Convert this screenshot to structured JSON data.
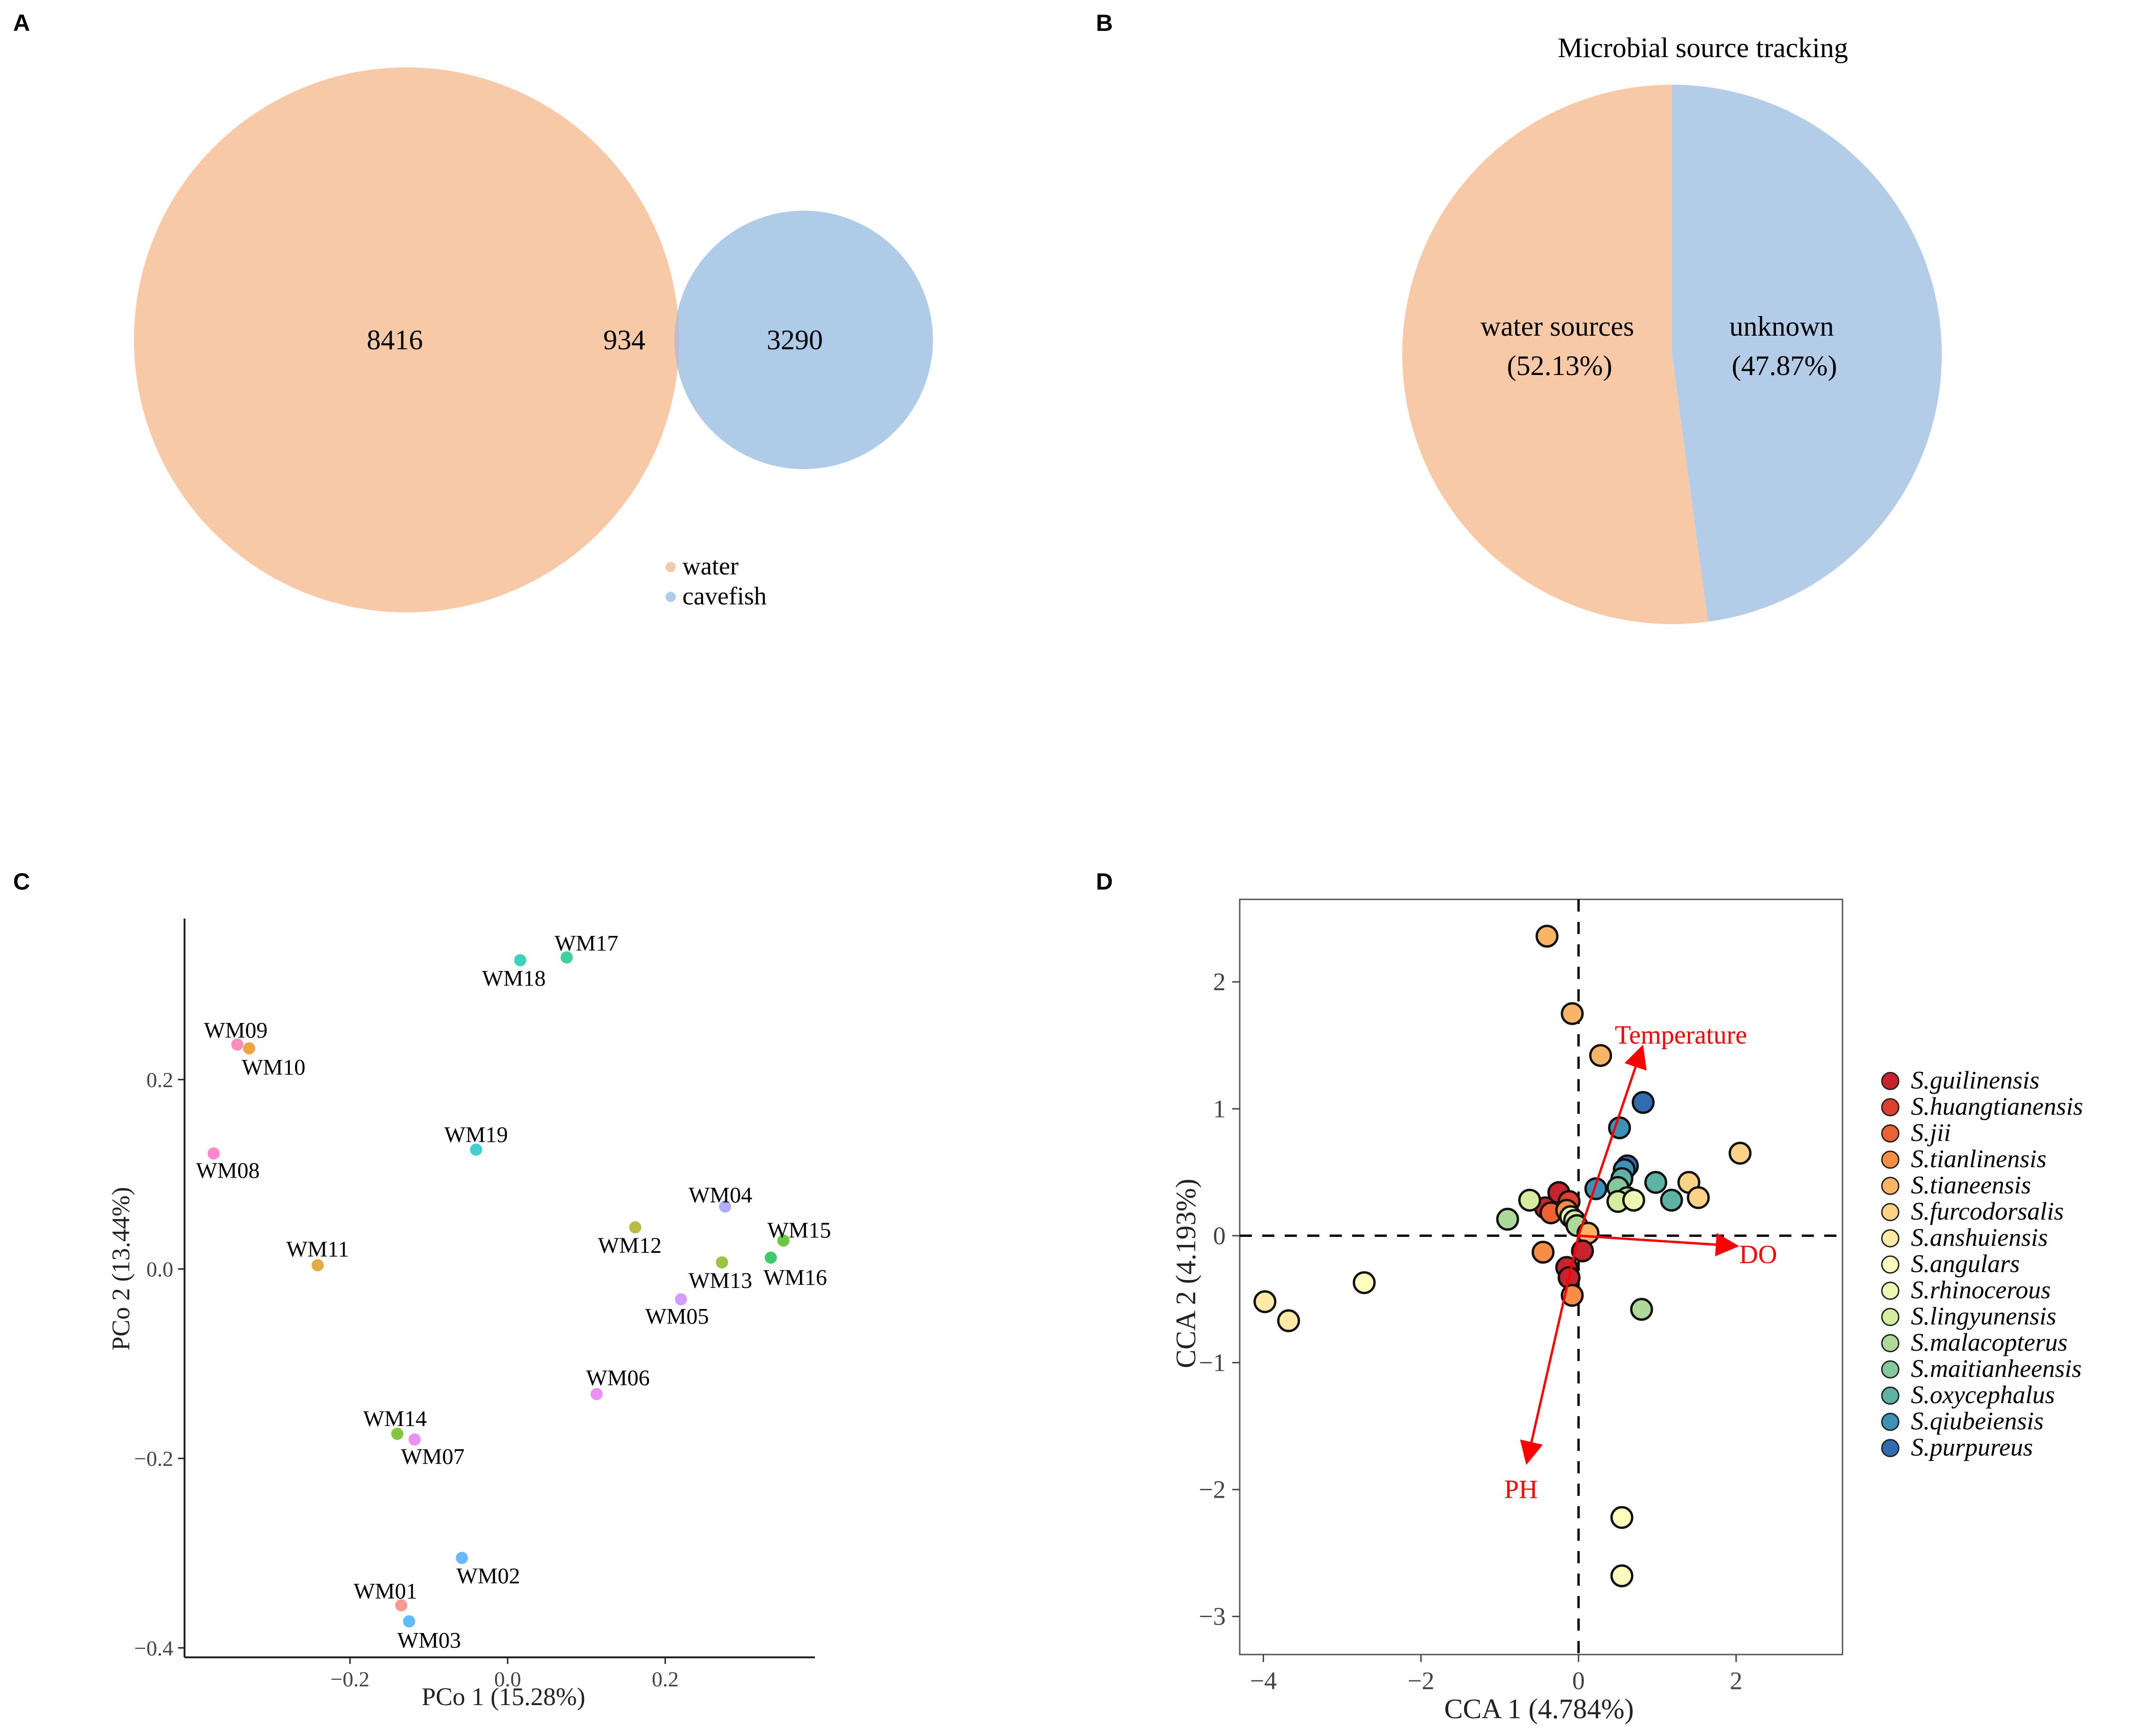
{
  "panels": {
    "a": "A",
    "b": "B",
    "c": "C",
    "d": "D"
  },
  "chart_data": [
    {
      "type": "venn",
      "panel": "A",
      "sets": [
        {
          "name": "water",
          "color": "#f8c9a6"
        },
        {
          "name": "cavefish",
          "color": "#aecbe8"
        }
      ],
      "values": {
        "water_only": "8416",
        "both": "934",
        "cavefish_only": "3290"
      },
      "overlap_color": "#c0bccd",
      "legend": [
        "water",
        "cavefish"
      ]
    },
    {
      "type": "pie",
      "panel": "B",
      "title": "Microbial source tracking",
      "slices": [
        {
          "label": "water sources",
          "pct_label": "(52.13%)",
          "value": 52.13,
          "color": "#f8c9a6"
        },
        {
          "label": "unknown",
          "pct_label": "(47.87%)",
          "value": 47.87,
          "color": "#b3cde8"
        }
      ]
    },
    {
      "type": "scatter",
      "panel": "C",
      "xlabel": "PCo 1 (15.28%)",
      "ylabel": "PCo 2 (13.44%)",
      "xlim": [
        -0.41,
        0.39
      ],
      "ylim": [
        -0.41,
        0.37
      ],
      "xticks": [
        -0.2,
        0.0,
        0.2
      ],
      "xtick_labels": [
        "−0.2",
        "0.0",
        "0.2"
      ],
      "yticks": [
        -0.4,
        -0.2,
        0.0,
        0.2
      ],
      "ytick_labels": [
        "−0.4",
        "−0.2",
        "0.0",
        "0.2"
      ],
      "points": [
        {
          "label": "WM01",
          "x": -0.135,
          "y": -0.355,
          "color": "#f8766d",
          "lx": -0.155,
          "ly": -0.34,
          "anchor": "middle"
        },
        {
          "label": "WM02",
          "x": -0.058,
          "y": -0.305,
          "color": "#35a2ff",
          "lx": -0.065,
          "ly": -0.324,
          "anchor": "start"
        },
        {
          "label": "WM03",
          "x": -0.125,
          "y": -0.372,
          "color": "#29a3ff",
          "lx": -0.14,
          "ly": -0.392,
          "anchor": "start"
        },
        {
          "label": "WM04",
          "x": 0.276,
          "y": 0.066,
          "color": "#9590ff",
          "lx": 0.27,
          "ly": 0.078,
          "anchor": "middle"
        },
        {
          "label": "WM05",
          "x": 0.22,
          "y": -0.032,
          "color": "#c77cff",
          "lx": 0.215,
          "ly": -0.05,
          "anchor": "middle"
        },
        {
          "label": "WM06",
          "x": 0.113,
          "y": -0.132,
          "color": "#e76bf3",
          "lx": 0.14,
          "ly": -0.115,
          "anchor": "middle"
        },
        {
          "label": "WM07",
          "x": -0.118,
          "y": -0.18,
          "color": "#e76bf3",
          "lx": -0.095,
          "ly": -0.198,
          "anchor": "middle"
        },
        {
          "label": "WM08",
          "x": -0.373,
          "y": 0.122,
          "color": "#ff62bc",
          "lx": -0.355,
          "ly": 0.104,
          "anchor": "middle"
        },
        {
          "label": "WM09",
          "x": -0.343,
          "y": 0.237,
          "color": "#ff67a4",
          "lx": -0.345,
          "ly": 0.252,
          "anchor": "middle"
        },
        {
          "label": "WM10",
          "x": -0.328,
          "y": 0.233,
          "color": "#e58700",
          "lx": -0.297,
          "ly": 0.213,
          "anchor": "middle"
        },
        {
          "label": "WM11",
          "x": -0.241,
          "y": 0.004,
          "color": "#d89000",
          "lx": -0.241,
          "ly": 0.021,
          "anchor": "middle"
        },
        {
          "label": "WM12",
          "x": 0.162,
          "y": 0.044,
          "color": "#a3a500",
          "lx": 0.155,
          "ly": 0.025,
          "anchor": "middle"
        },
        {
          "label": "WM13",
          "x": 0.272,
          "y": 0.007,
          "color": "#7cae00",
          "lx": 0.27,
          "ly": -0.012,
          "anchor": "middle"
        },
        {
          "label": "WM14",
          "x": -0.14,
          "y": -0.174,
          "color": "#5bb300",
          "lx": -0.143,
          "ly": -0.158,
          "anchor": "middle"
        },
        {
          "label": "WM15",
          "x": 0.35,
          "y": 0.03,
          "color": "#39b600",
          "lx": 0.37,
          "ly": 0.041,
          "anchor": "middle"
        },
        {
          "label": "WM16",
          "x": 0.334,
          "y": 0.012,
          "color": "#00ba38",
          "lx": 0.365,
          "ly": -0.009,
          "anchor": "middle"
        },
        {
          "label": "WM17",
          "x": 0.075,
          "y": 0.329,
          "color": "#00bf7d",
          "lx": 0.1,
          "ly": 0.344,
          "anchor": "middle"
        },
        {
          "label": "WM18",
          "x": 0.016,
          "y": 0.326,
          "color": "#00c1a3",
          "lx": 0.008,
          "ly": 0.307,
          "anchor": "middle"
        },
        {
          "label": "WM19",
          "x": -0.04,
          "y": 0.126,
          "color": "#00bfc4",
          "lx": -0.04,
          "ly": 0.142,
          "anchor": "middle"
        }
      ]
    },
    {
      "type": "scatter",
      "panel": "D",
      "xlabel": "CCA 1 (4.784%)",
      "ylabel": "CCA 2 (4.193%)",
      "xlim": [
        -4.3,
        3.35
      ],
      "ylim": [
        -3.3,
        2.65
      ],
      "xticks": [
        -4,
        -2,
        0,
        2
      ],
      "xtick_labels": [
        "−4",
        "−2",
        "0",
        "2"
      ],
      "yticks": [
        -3,
        -2,
        -1,
        0,
        1,
        2
      ],
      "ytick_labels": [
        "−3",
        "−2",
        "−1",
        "0",
        "1",
        "2"
      ],
      "arrows": [
        {
          "label": "Temperature",
          "x": 0.8,
          "y": 1.47,
          "lx": 1.3,
          "ly": 1.58
        },
        {
          "label": "DO",
          "x": 1.98,
          "y": -0.08,
          "lx": 2.28,
          "ly": -0.15
        },
        {
          "label": "PH",
          "x": -0.65,
          "y": -1.77,
          "lx": -0.73,
          "ly": -2.0
        }
      ],
      "species": [
        {
          "name": "S.guilinensis",
          "color": "#c8232c"
        },
        {
          "name": "S.huangtianensis",
          "color": "#de3f2e"
        },
        {
          "name": "S.jii",
          "color": "#ee6133"
        },
        {
          "name": "S.tianlinensis",
          "color": "#f68d45"
        },
        {
          "name": "S.tianeensis",
          "color": "#f9b565"
        },
        {
          "name": "S.furcodorsalis",
          "color": "#fbd386"
        },
        {
          "name": "S.anshuiensis",
          "color": "#fdeba5"
        },
        {
          "name": "S.angulars",
          "color": "#fffcbe"
        },
        {
          "name": "S.rhinocerous",
          "color": "#eef8b4"
        },
        {
          "name": "S.lingyunensis",
          "color": "#d4ed9e"
        },
        {
          "name": "S.malacopterus",
          "color": "#add99b"
        },
        {
          "name": "S.maitianheensis",
          "color": "#84c89e"
        },
        {
          "name": "S.oxycephalus",
          "color": "#5db4a4"
        },
        {
          "name": "S.qiubeiensis",
          "color": "#3b91b6"
        },
        {
          "name": "S.purpureus",
          "color": "#2f6cb2"
        }
      ],
      "points": [
        {
          "x": -0.4,
          "y": 2.36,
          "s": 4
        },
        {
          "x": -0.08,
          "y": 1.75,
          "s": 4
        },
        {
          "x": 0.28,
          "y": 1.42,
          "s": 4
        },
        {
          "x": 0.82,
          "y": 1.05,
          "s": 14
        },
        {
          "x": 0.52,
          "y": 0.85,
          "s": 13
        },
        {
          "x": 0.62,
          "y": 0.55,
          "s": 14
        },
        {
          "x": 0.58,
          "y": 0.52,
          "s": 13
        },
        {
          "x": 0.55,
          "y": 0.45,
          "s": 12
        },
        {
          "x": 0.98,
          "y": 0.42,
          "s": 12
        },
        {
          "x": 1.18,
          "y": 0.28,
          "s": 12
        },
        {
          "x": 0.5,
          "y": 0.38,
          "s": 11
        },
        {
          "x": 0.62,
          "y": 0.3,
          "s": 10
        },
        {
          "x": 0.5,
          "y": 0.27,
          "s": 9
        },
        {
          "x": 0.7,
          "y": 0.28,
          "s": 8
        },
        {
          "x": 1.4,
          "y": 0.42,
          "s": 5
        },
        {
          "x": 1.52,
          "y": 0.3,
          "s": 5
        },
        {
          "x": 2.05,
          "y": 0.65,
          "s": 5
        },
        {
          "x": 0.22,
          "y": 0.37,
          "s": 13
        },
        {
          "x": -0.42,
          "y": 0.22,
          "s": 0
        },
        {
          "x": -0.25,
          "y": 0.34,
          "s": 0
        },
        {
          "x": -0.12,
          "y": 0.27,
          "s": 1
        },
        {
          "x": -0.35,
          "y": 0.18,
          "s": 2
        },
        {
          "x": -0.15,
          "y": 0.2,
          "s": 3
        },
        {
          "x": -0.1,
          "y": 0.15,
          "s": 8
        },
        {
          "x": -0.05,
          "y": 0.12,
          "s": 9
        },
        {
          "x": -0.02,
          "y": 0.08,
          "s": 10
        },
        {
          "x": 0.12,
          "y": 0.02,
          "s": 4
        },
        {
          "x": 0.05,
          "y": -0.12,
          "s": 0
        },
        {
          "x": -0.62,
          "y": 0.28,
          "s": 9
        },
        {
          "x": -0.9,
          "y": 0.13,
          "s": 10
        },
        {
          "x": -0.45,
          "y": -0.13,
          "s": 3
        },
        {
          "x": -0.15,
          "y": -0.25,
          "s": 0
        },
        {
          "x": -0.12,
          "y": -0.33,
          "s": 0
        },
        {
          "x": -0.08,
          "y": -0.47,
          "s": 3
        },
        {
          "x": 0.8,
          "y": -0.58,
          "s": 10
        },
        {
          "x": -2.72,
          "y": -0.37,
          "s": 7
        },
        {
          "x": -3.98,
          "y": -0.52,
          "s": 6
        },
        {
          "x": -3.68,
          "y": -0.67,
          "s": 6
        },
        {
          "x": 0.55,
          "y": -2.22,
          "s": 7
        },
        {
          "x": 0.55,
          "y": -2.68,
          "s": 7
        }
      ]
    }
  ]
}
